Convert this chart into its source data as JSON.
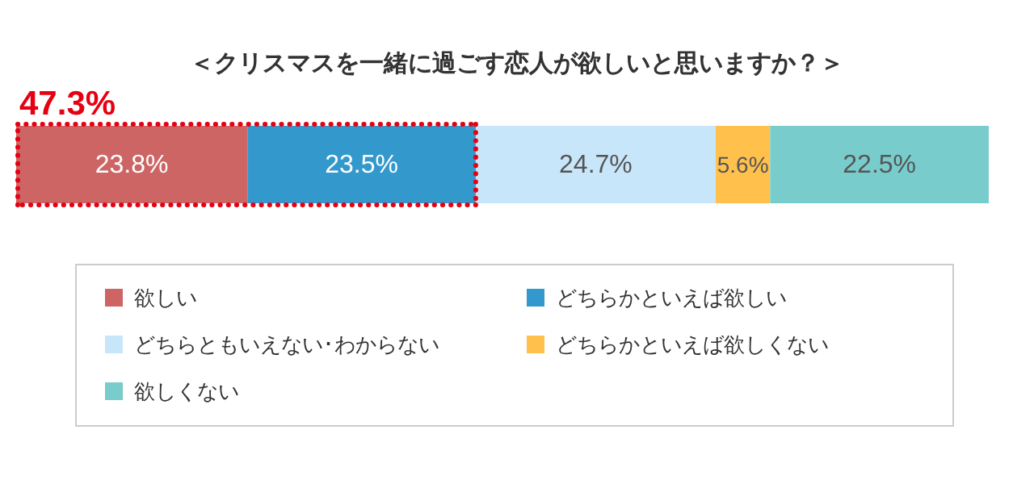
{
  "chart_data": {
    "type": "bar",
    "orientation": "horizontal",
    "stacked": true,
    "title": "＜クリスマスを一緒に過ごす恋人が欲しいと思いますか？＞",
    "categories": [
      null
    ],
    "series": [
      {
        "name": "欲しい",
        "color": "#cd6565",
        "values": [
          23.8
        ],
        "value_labels": [
          "23.8%"
        ]
      },
      {
        "name": "どちらかといえば欲しい",
        "color": "#3398cc",
        "values": [
          23.5
        ],
        "value_labels": [
          "23.5%"
        ]
      },
      {
        "name": "どちらともいえない･わからない",
        "color": "#c8e6f9",
        "values": [
          24.7
        ],
        "value_labels": [
          "24.7%"
        ]
      },
      {
        "name": "どちらかといえば欲しくない",
        "color": "#ffc04c",
        "values": [
          5.6
        ],
        "value_labels": [
          "5.6%"
        ]
      },
      {
        "name": "欲しくない",
        "color": "#79cccc",
        "values": [
          22.5
        ],
        "value_labels": [
          "22.5%"
        ]
      }
    ],
    "annotations": [
      "47.3%"
    ],
    "legend": "bottom"
  }
}
